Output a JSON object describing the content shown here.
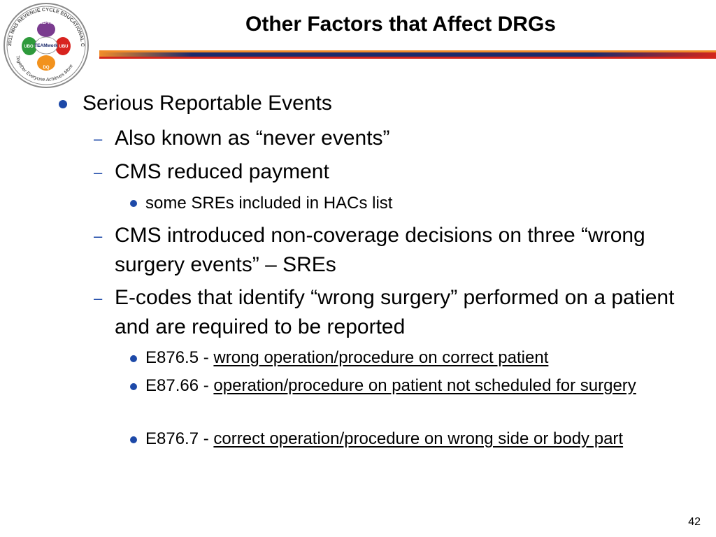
{
  "logo": {
    "ring_text": "2011 MHS REVENUE CYCLE EDUCATIONAL CONFERENCE",
    "center_text": "TEAMwork",
    "hand_labels": [
      "MEPRS",
      "UBU",
      "DQ",
      "UBO"
    ],
    "tagline": "Together Everyone Achieves More"
  },
  "slide": {
    "title": "Other Factors that Affect DRGs",
    "page_number": "42"
  },
  "content": {
    "item1": "Serious Reportable Events",
    "item1_1": "Also known as “never events”",
    "item1_2": "CMS reduced payment",
    "item1_2_1": "some SREs included in HACs list",
    "item1_3": "CMS introduced non-coverage decisions on three “wrong surgery events” – SREs",
    "item1_4": "E-codes that identify “wrong surgery” performed on a patient and are required to be reported",
    "ecodes": [
      {
        "code": "E876.5 - ",
        "desc": "wrong operation/procedure on correct patient"
      },
      {
        "code": "E87.66 - ",
        "desc": "operation/procedure on patient not scheduled for surgery"
      },
      {
        "code": "E876.7 - ",
        "desc": "correct operation/procedure on wrong side or body part"
      }
    ]
  },
  "colors": {
    "bullet": "#1d49a8",
    "bar_navy": "#1b2a6b",
    "bar_orange": "#f08c2a",
    "bar_red": "#d4261c"
  }
}
